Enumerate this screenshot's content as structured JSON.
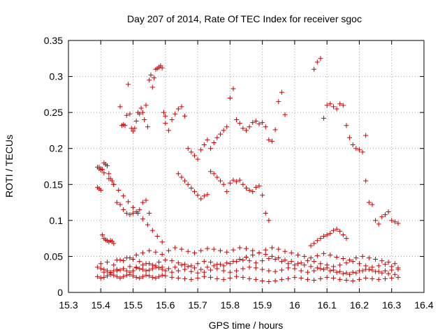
{
  "chart_data": {
    "type": "scatter",
    "title": "Day 207 of 2014, Rate Of TEC Index for receiver sgoc",
    "xlabel": "GPS time / hours",
    "ylabel": "ROTI / TECUs",
    "xlim": [
      15.3,
      16.4
    ],
    "ylim": [
      0,
      0.35
    ],
    "xticks": [
      "15.3",
      "15.4",
      "15.5",
      "15.6",
      "15.7",
      "15.8",
      "15.9",
      "16",
      "16.1",
      "16.2",
      "16.3",
      "16.4"
    ],
    "yticks": [
      "0",
      "0.05",
      "0.1",
      "0.15",
      "0.2",
      "0.25",
      "0.3",
      "0.35"
    ],
    "grid": true,
    "marker": "+",
    "color": "#cc0000",
    "series": [
      {
        "name": "ROTI",
        "x": [
          15.39,
          15.395,
          15.4,
          15.405,
          15.41,
          15.415,
          15.42,
          15.425,
          15.43,
          15.435,
          15.44,
          15.39,
          15.395,
          15.4,
          15.405,
          15.41,
          15.415,
          15.42,
          15.425,
          15.43,
          15.435,
          15.44,
          15.39,
          15.4,
          15.41,
          15.42,
          15.43,
          15.44,
          15.45,
          15.46,
          15.47,
          15.48,
          15.49,
          15.5,
          15.51,
          15.52,
          15.53,
          15.54,
          15.55,
          15.56,
          15.57,
          15.58,
          15.59,
          15.6,
          15.62,
          15.64,
          15.66,
          15.68,
          15.7,
          15.72,
          15.74,
          15.76,
          15.78,
          15.8,
          15.82,
          15.84,
          15.86,
          15.88,
          15.9,
          15.92,
          15.94,
          15.96,
          15.98,
          16.0,
          16.02,
          16.04,
          16.06,
          16.08,
          16.1,
          16.12,
          16.14,
          16.16,
          16.18,
          16.2,
          16.22,
          16.24,
          16.26,
          16.28,
          16.3,
          16.32,
          15.39,
          15.4,
          15.41,
          15.42,
          15.43,
          15.44,
          15.45,
          15.46,
          15.47,
          15.48,
          15.49,
          15.5,
          15.51,
          15.52,
          15.53,
          15.54,
          15.55,
          15.56,
          15.57,
          15.58,
          15.59,
          15.6,
          15.62,
          15.64,
          15.66,
          15.68,
          15.7,
          15.72,
          15.74,
          15.76,
          15.78,
          15.8,
          15.82,
          15.84,
          15.86,
          15.88,
          15.9,
          15.92,
          15.94,
          15.96,
          15.98,
          16.0,
          16.02,
          16.04,
          16.06,
          16.08,
          16.1,
          16.12,
          16.14,
          16.16,
          16.18,
          16.2,
          16.22,
          16.24,
          16.26,
          16.28,
          16.3,
          16.32,
          15.4,
          15.42,
          15.44,
          15.46,
          15.48,
          15.5,
          15.52,
          15.54,
          15.56,
          15.58,
          15.6,
          15.62,
          15.64,
          15.66,
          15.68,
          15.7,
          15.72,
          15.74,
          15.76,
          15.78,
          15.8,
          15.82,
          15.84,
          15.86,
          15.88,
          15.9,
          15.92,
          15.94,
          15.96,
          15.98,
          16.0,
          16.02,
          16.04,
          16.06,
          16.08,
          16.1,
          16.12,
          16.14,
          16.16,
          16.18,
          16.2,
          16.22,
          16.24,
          16.26,
          16.28,
          16.3,
          16.32,
          15.41,
          15.43,
          15.45,
          15.47,
          15.49,
          15.51,
          15.53,
          15.55,
          15.57,
          15.59,
          15.61,
          15.63,
          15.65,
          15.67,
          15.69,
          15.71,
          15.73,
          15.75,
          15.77,
          15.79,
          15.81,
          15.83,
          15.85,
          15.87,
          15.89,
          15.91,
          15.93,
          15.95,
          15.97,
          15.99,
          16.01,
          16.03,
          16.05,
          16.07,
          16.09,
          16.11,
          16.13,
          16.15,
          16.17,
          16.19,
          16.21,
          16.23,
          16.25,
          16.27,
          16.29,
          16.31,
          15.45,
          15.47,
          15.49,
          15.51,
          15.53,
          15.55,
          15.57,
          15.59,
          15.61,
          15.63,
          15.65,
          15.67,
          15.69,
          15.71,
          15.73,
          15.75,
          15.77,
          15.79,
          15.81,
          15.83,
          15.85,
          15.87,
          15.89,
          15.91,
          15.93,
          15.95,
          15.97,
          15.99,
          16.01,
          16.03,
          16.05,
          16.07,
          16.09,
          16.11,
          16.13,
          16.15,
          16.17,
          16.19,
          16.21,
          16.23,
          16.25,
          16.27,
          16.29,
          16.31,
          15.395,
          15.41,
          15.425,
          15.44,
          15.455,
          15.47,
          15.485,
          15.5,
          15.515,
          15.53,
          15.545,
          15.56,
          15.575,
          15.59,
          15.46,
          15.465,
          15.47,
          15.475,
          15.48,
          15.485,
          15.49,
          15.495,
          15.5,
          15.505,
          15.51,
          15.515,
          15.52,
          15.525,
          15.53,
          15.535,
          15.54,
          15.545,
          15.55,
          15.555,
          15.56,
          15.565,
          15.57,
          15.575,
          15.58,
          15.585,
          15.59,
          15.595,
          15.6,
          15.6,
          15.61,
          15.62,
          15.63,
          15.64,
          15.65,
          15.66,
          15.67,
          15.68,
          15.69,
          15.7,
          15.71,
          15.72,
          15.73,
          15.74,
          15.75,
          15.76,
          15.77,
          15.78,
          15.79,
          15.8,
          15.81,
          15.82,
          15.83,
          15.84,
          15.85,
          15.86,
          15.87,
          15.88,
          15.89,
          15.9,
          15.91,
          15.92,
          15.93,
          15.94,
          15.95,
          15.96,
          15.97,
          16.06,
          16.07,
          16.08,
          16.09,
          16.1,
          16.11,
          16.12,
          16.13,
          16.14,
          16.15,
          16.16,
          16.17,
          16.18,
          16.19,
          16.2,
          16.21,
          16.22,
          16.22,
          16.23,
          16.24,
          16.25,
          16.26,
          16.27,
          16.28,
          16.29,
          16.3,
          16.31,
          16.32,
          15.64,
          15.65,
          15.66,
          15.67,
          15.68,
          15.69,
          15.7,
          15.71,
          15.72,
          15.73,
          15.74,
          15.75,
          15.76,
          15.77,
          15.78,
          15.79,
          15.8,
          15.81,
          15.82,
          15.83,
          15.84,
          15.85,
          15.86,
          15.87,
          15.88,
          15.89,
          15.9,
          15.91,
          15.92,
          15.45,
          15.46,
          15.47,
          15.48,
          15.49,
          15.5,
          15.51,
          15.52,
          15.53,
          15.54,
          15.55,
          16.05,
          16.06,
          16.07,
          16.08,
          16.09,
          16.1,
          16.11,
          16.12,
          16.13,
          16.14,
          16.15,
          16.16
        ],
        "y": [
          0.174,
          0.172,
          0.17,
          0.171,
          0.18,
          0.178,
          0.176,
          0.165,
          0.158,
          0.155,
          0.15,
          0.146,
          0.144,
          0.142,
          0.08,
          0.075,
          0.073,
          0.072,
          0.07,
          0.072,
          0.071,
          0.068,
          0.035,
          0.033,
          0.032,
          0.03,
          0.028,
          0.03,
          0.032,
          0.031,
          0.033,
          0.03,
          0.028,
          0.03,
          0.034,
          0.033,
          0.032,
          0.03,
          0.031,
          0.033,
          0.035,
          0.034,
          0.032,
          0.03,
          0.028,
          0.03,
          0.032,
          0.029,
          0.027,
          0.028,
          0.031,
          0.033,
          0.03,
          0.028,
          0.03,
          0.033,
          0.035,
          0.034,
          0.032,
          0.03,
          0.029,
          0.031,
          0.034,
          0.033,
          0.03,
          0.028,
          0.03,
          0.033,
          0.034,
          0.031,
          0.029,
          0.027,
          0.028,
          0.03,
          0.032,
          0.031,
          0.029,
          0.03,
          0.031,
          0.032,
          0.022,
          0.02,
          0.021,
          0.023,
          0.025,
          0.024,
          0.022,
          0.02,
          0.022,
          0.024,
          0.025,
          0.023,
          0.021,
          0.02,
          0.022,
          0.024,
          0.023,
          0.021,
          0.02,
          0.022,
          0.024,
          0.023,
          0.021,
          0.02,
          0.019,
          0.018,
          0.02,
          0.022,
          0.021,
          0.019,
          0.018,
          0.02,
          0.022,
          0.021,
          0.019,
          0.018,
          0.016,
          0.015,
          0.016,
          0.018,
          0.019,
          0.021,
          0.02,
          0.018,
          0.017,
          0.019,
          0.021,
          0.02,
          0.018,
          0.017,
          0.016,
          0.018,
          0.02,
          0.019,
          0.018,
          0.019,
          0.02,
          0.021,
          0.04,
          0.042,
          0.038,
          0.045,
          0.048,
          0.046,
          0.043,
          0.04,
          0.038,
          0.042,
          0.045,
          0.044,
          0.041,
          0.039,
          0.037,
          0.04,
          0.043,
          0.042,
          0.039,
          0.037,
          0.04,
          0.043,
          0.045,
          0.044,
          0.041,
          0.044,
          0.047,
          0.046,
          0.043,
          0.04,
          0.038,
          0.041,
          0.044,
          0.043,
          0.04,
          0.038,
          0.036,
          0.038,
          0.041,
          0.043,
          0.04,
          0.037,
          0.035,
          0.037,
          0.039,
          0.036,
          0.034,
          0.028,
          0.027,
          0.03,
          0.033,
          0.036,
          0.035,
          0.038,
          0.04,
          0.037,
          0.035,
          0.033,
          0.035,
          0.038,
          0.036,
          0.034,
          0.032,
          0.035,
          0.037,
          0.039,
          0.041,
          0.043,
          0.046,
          0.049,
          0.052,
          0.055,
          0.053,
          0.05,
          0.048,
          0.045,
          0.043,
          0.04,
          0.038,
          0.036,
          0.034,
          0.032,
          0.03,
          0.028,
          0.026,
          0.025,
          0.027,
          0.03,
          0.032,
          0.029,
          0.027,
          0.026,
          0.025,
          0.045,
          0.044,
          0.048,
          0.052,
          0.055,
          0.058,
          0.056,
          0.053,
          0.058,
          0.062,
          0.06,
          0.057,
          0.055,
          0.058,
          0.061,
          0.06,
          0.058,
          0.056,
          0.059,
          0.062,
          0.061,
          0.058,
          0.055,
          0.059,
          0.062,
          0.06,
          0.057,
          0.055,
          0.052,
          0.05,
          0.048,
          0.051,
          0.054,
          0.052,
          0.049,
          0.047,
          0.045,
          0.048,
          0.05,
          0.048,
          0.046,
          0.044,
          0.042,
          0.04,
          0.174,
          0.166,
          0.158,
          0.15,
          0.142,
          0.134,
          0.126,
          0.118,
          0.11,
          0.102,
          0.094,
          0.086,
          0.078,
          0.07,
          0.258,
          0.232,
          0.233,
          0.232,
          0.246,
          0.289,
          0.248,
          0.228,
          0.224,
          0.228,
          0.238,
          0.25,
          0.248,
          0.256,
          0.25,
          0.24,
          0.26,
          0.23,
          0.295,
          0.302,
          0.285,
          0.298,
          0.31,
          0.311,
          0.313,
          0.315,
          0.312,
          0.25,
          0.245,
          0.235,
          0.225,
          0.24,
          0.248,
          0.255,
          0.258,
          0.245,
          0.2,
          0.195,
          0.19,
          0.185,
          0.198,
          0.205,
          0.212,
          0.2,
          0.208,
          0.215,
          0.22,
          0.225,
          0.23,
          0.27,
          0.283,
          0.24,
          0.235,
          0.228,
          0.225,
          0.23,
          0.236,
          0.238,
          0.234,
          0.236,
          0.23,
          0.212,
          0.21,
          0.226,
          0.265,
          0.278,
          0.247,
          0.31,
          0.32,
          0.325,
          0.242,
          0.26,
          0.262,
          0.258,
          0.255,
          0.262,
          0.26,
          0.232,
          0.215,
          0.205,
          0.2,
          0.198,
          0.195,
          0.218,
          0.155,
          0.125,
          0.122,
          0.1,
          0.095,
          0.105,
          0.108,
          0.112,
          0.1,
          0.098,
          0.096,
          0.165,
          0.16,
          0.155,
          0.15,
          0.145,
          0.14,
          0.135,
          0.13,
          0.134,
          0.136,
          0.168,
          0.165,
          0.16,
          0.155,
          0.15,
          0.14,
          0.152,
          0.156,
          0.154,
          0.156,
          0.15,
          0.145,
          0.142,
          0.14,
          0.146,
          0.148,
          0.135,
          0.11,
          0.1,
          0.125,
          0.122,
          0.115,
          0.11,
          0.108,
          0.11,
          0.112,
          0.115,
          0.125,
          0.128,
          0.11,
          0.065,
          0.068,
          0.072,
          0.075,
          0.078,
          0.08,
          0.082,
          0.086,
          0.088,
          0.085,
          0.08,
          0.075
        ]
      }
    ]
  }
}
